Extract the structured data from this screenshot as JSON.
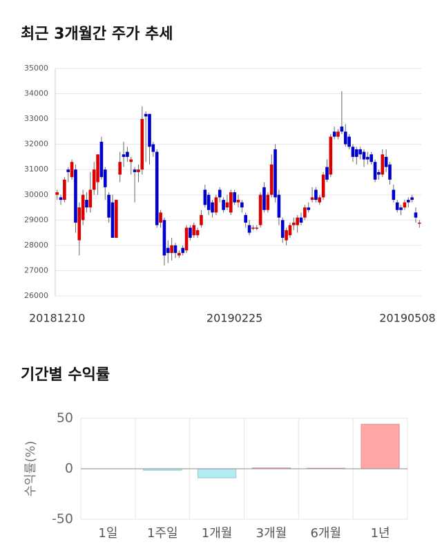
{
  "chart_data": [
    {
      "type": "candlestick",
      "title": "최근 3개월간 주가 추세",
      "categories": [
        "20181210",
        null,
        null,
        null,
        null,
        null,
        null,
        null,
        null,
        null,
        null,
        null,
        null,
        null,
        null,
        null,
        null,
        null,
        null,
        null,
        null,
        null,
        null,
        null,
        null,
        null,
        null,
        null,
        null,
        null,
        null,
        null,
        null,
        null,
        null,
        null,
        null,
        null,
        null,
        null,
        null,
        null,
        null,
        null,
        null,
        null,
        null,
        null,
        "20190225",
        null,
        null,
        null,
        null,
        null,
        null,
        null,
        null,
        null,
        null,
        null,
        null,
        null,
        null,
        null,
        null,
        null,
        null,
        null,
        null,
        null,
        null,
        null,
        null,
        null,
        null,
        null,
        null,
        null,
        null,
        null,
        null,
        null,
        null,
        null,
        null,
        null,
        null,
        null,
        null,
        null,
        null,
        null,
        null,
        null,
        null,
        null,
        null,
        null,
        "20190508"
      ],
      "open": [
        30000,
        29900,
        29800,
        31000,
        30700,
        31000,
        28200,
        29000,
        29800,
        29500,
        30200,
        30500,
        32100,
        31000,
        30000,
        29700,
        28300,
        30800,
        31600,
        31700,
        31300,
        31000,
        30900,
        31000,
        33200,
        33200,
        32000,
        31700,
        28900,
        29000,
        27900,
        27700,
        28000,
        27600,
        27900,
        27800,
        28700,
        28400,
        28400,
        28800,
        30200,
        30000,
        29700,
        29300,
        30200,
        29800,
        29500,
        29300,
        30100,
        29700,
        29700,
        29200,
        28800,
        28700,
        28700,
        28800,
        30300,
        29400,
        30000,
        31800,
        30000,
        29000,
        28200,
        28400,
        28800,
        28800,
        29100,
        29100,
        29500,
        29800,
        30200,
        29700,
        29900,
        31100,
        30800,
        32500,
        32300,
        32700,
        32500,
        32300,
        31900,
        31800,
        31800,
        31700,
        31500,
        31600,
        31300,
        30900,
        30800,
        31500,
        31200,
        30200,
        29700,
        29500,
        29500,
        29800,
        29900,
        29300,
        28900
      ],
      "high": [
        30200,
        30000,
        30700,
        31100,
        31400,
        31200,
        29700,
        30200,
        30100,
        30900,
        31300,
        31600,
        32300,
        31100,
        30100,
        30000,
        29800,
        31700,
        32100,
        31900,
        31500,
        31100,
        31200,
        33500,
        33300,
        33200,
        32100,
        31800,
        29400,
        29100,
        28200,
        28300,
        28100,
        27800,
        28000,
        28800,
        28800,
        28900,
        28700,
        29400,
        30400,
        30100,
        29800,
        30000,
        30300,
        29900,
        30000,
        30200,
        30200,
        30000,
        29800,
        29300,
        29000,
        28800,
        28800,
        30100,
        30500,
        30100,
        31600,
        32000,
        30200,
        29100,
        28700,
        28900,
        29100,
        29200,
        29300,
        29600,
        29700,
        30300,
        30300,
        30000,
        30900,
        31400,
        32400,
        32700,
        32600,
        34100,
        32800,
        32400,
        32000,
        31900,
        31900,
        31800,
        31700,
        31700,
        31400,
        31000,
        31800,
        31800,
        31300,
        30400,
        29800,
        29600,
        29800,
        29900,
        30000,
        29500,
        29000
      ],
      "low": [
        29800,
        29600,
        29700,
        30500,
        30600,
        28500,
        27600,
        28800,
        29300,
        29300,
        30000,
        30000,
        30600,
        29800,
        28900,
        28300,
        28300,
        30500,
        31100,
        31300,
        30800,
        29700,
        30500,
        30800,
        31300,
        31200,
        31500,
        28700,
        28700,
        27200,
        27300,
        27400,
        27500,
        27500,
        27600,
        27700,
        28200,
        28300,
        28300,
        28700,
        29500,
        29200,
        29100,
        29200,
        29700,
        29300,
        29400,
        29200,
        29600,
        29500,
        29300,
        28700,
        28400,
        28600,
        28600,
        28700,
        29300,
        29300,
        29900,
        29700,
        28800,
        28100,
        28000,
        28300,
        28600,
        28500,
        28800,
        29000,
        29300,
        29700,
        29700,
        29600,
        29800,
        30500,
        30700,
        32200,
        32200,
        32400,
        31900,
        31800,
        31300,
        31200,
        31400,
        31100,
        31200,
        31200,
        30500,
        30600,
        30700,
        30900,
        30400,
        29700,
        29300,
        29200,
        29400,
        29500,
        29700,
        28900,
        28700
      ],
      "close": [
        30100,
        29800,
        30600,
        30900,
        31300,
        28900,
        29500,
        30000,
        29500,
        30200,
        31000,
        31600,
        30700,
        30300,
        29100,
        28300,
        29800,
        31300,
        31500,
        31500,
        31400,
        30900,
        31000,
        33000,
        33100,
        31900,
        31700,
        28800,
        29300,
        27600,
        27700,
        28000,
        27700,
        27700,
        27700,
        28700,
        28300,
        28800,
        28600,
        29200,
        29600,
        29400,
        29300,
        29900,
        29900,
        29400,
        29700,
        30100,
        29700,
        29800,
        29500,
        28900,
        28500,
        28700,
        28700,
        30000,
        29400,
        30000,
        31200,
        29900,
        29100,
        28300,
        28600,
        28800,
        28900,
        29100,
        28900,
        29500,
        29400,
        29900,
        29800,
        29900,
        30800,
        30600,
        32300,
        32300,
        32500,
        32500,
        32000,
        31900,
        31500,
        31500,
        31600,
        31400,
        31400,
        31300,
        30600,
        30800,
        31600,
        31100,
        30600,
        29800,
        29400,
        29400,
        29700,
        29700,
        29800,
        29100,
        28900
      ],
      "up_color": "#d90000",
      "down_color": "#0000cc",
      "ylim": [
        26000,
        35000
      ],
      "yticks": [
        26000,
        27000,
        28000,
        29000,
        30000,
        31000,
        32000,
        33000,
        34000,
        35000
      ],
      "grid": true
    },
    {
      "type": "bar",
      "title": "기간별 수익률",
      "y_label": "수익률(%)",
      "categories": [
        "1일",
        "1주일",
        "1개월",
        "3개월",
        "6개월",
        "1년"
      ],
      "values": [
        0,
        -1.5,
        -9,
        0.8,
        0.5,
        44
      ],
      "positive_color": "#ffa6a6",
      "negative_color": "#b2ebf2",
      "ylim": [
        -50,
        50
      ],
      "yticks": [
        -50,
        0,
        50
      ],
      "grid": true
    }
  ]
}
